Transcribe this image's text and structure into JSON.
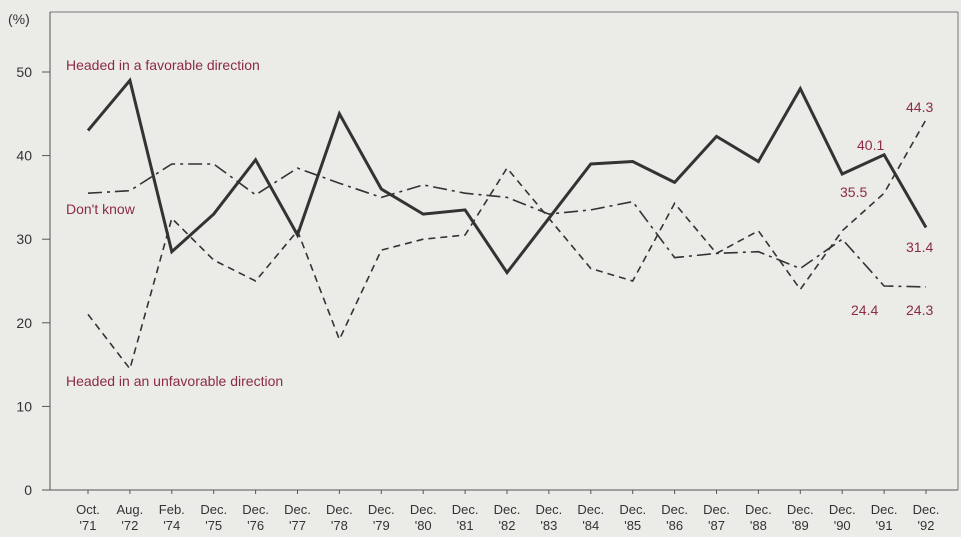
{
  "chart_data": {
    "type": "line",
    "unit_label": "(%)",
    "ylim": [
      0,
      50
    ],
    "yticks": [
      0,
      10,
      20,
      30,
      40,
      50
    ],
    "grid": false,
    "categories": [
      [
        "Oct.",
        "'71"
      ],
      [
        "Aug.",
        "'72"
      ],
      [
        "Feb.",
        "'74"
      ],
      [
        "Dec.",
        "'75"
      ],
      [
        "Dec.",
        "'76"
      ],
      [
        "Dec.",
        "'77"
      ],
      [
        "Dec.",
        "'78"
      ],
      [
        "Dec.",
        "'79"
      ],
      [
        "Dec.",
        "'80"
      ],
      [
        "Dec.",
        "'81"
      ],
      [
        "Dec.",
        "'82"
      ],
      [
        "Dec.",
        "'83"
      ],
      [
        "Dec.",
        "'84"
      ],
      [
        "Dec.",
        "'85"
      ],
      [
        "Dec.",
        "'86"
      ],
      [
        "Dec.",
        "'87"
      ],
      [
        "Dec.",
        "'88"
      ],
      [
        "Dec.",
        "'89"
      ],
      [
        "Dec.",
        "'90"
      ],
      [
        "Dec.",
        "'91"
      ],
      [
        "Dec.",
        "'92"
      ]
    ],
    "series": [
      {
        "name": "Headed in a favorable direction",
        "style": "solid",
        "color": "#333333",
        "values": [
          43.0,
          49.0,
          28.5,
          33.0,
          39.5,
          30.5,
          45.0,
          36.0,
          33.0,
          33.5,
          26.0,
          32.5,
          39.0,
          39.3,
          36.8,
          42.3,
          39.3,
          48.0,
          37.8,
          40.1,
          31.4
        ],
        "end_label": "31.4"
      },
      {
        "name": "Don't know",
        "style": "dash-dot",
        "color": "#333333",
        "values": [
          35.5,
          35.8,
          39.0,
          39.0,
          35.3,
          38.5,
          36.7,
          35.0,
          36.5,
          35.5,
          35.0,
          33.0,
          33.5,
          34.5,
          27.8,
          28.3,
          28.5,
          26.5,
          30.0,
          24.4,
          24.3
        ],
        "end_label": "24.3"
      },
      {
        "name": "Headed in an unfavorable direction",
        "style": "dashed",
        "color": "#333333",
        "values": [
          21.0,
          14.5,
          32.5,
          27.5,
          25.0,
          31.0,
          18.0,
          28.7,
          30.0,
          30.5,
          38.5,
          32.5,
          26.5,
          25.0,
          34.3,
          28.3,
          31.0,
          24.0,
          31.0,
          35.5,
          44.3
        ],
        "end_label": "44.3"
      }
    ],
    "annotations": [
      "40.1",
      "35.5",
      "24.4"
    ]
  }
}
